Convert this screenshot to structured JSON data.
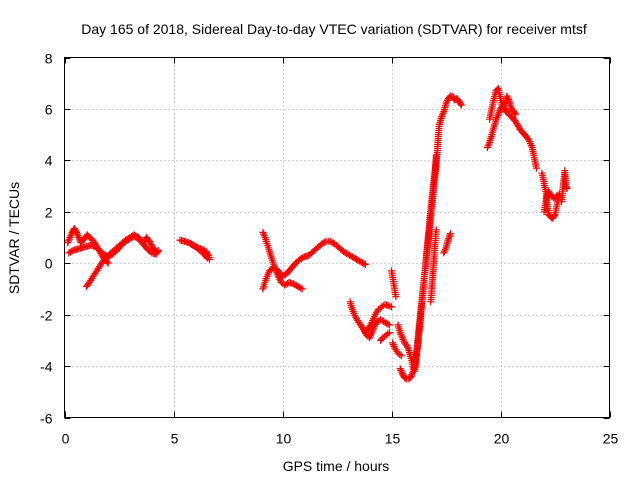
{
  "chart_data": {
    "type": "scatter",
    "title": "Day 165 of 2018, Sidereal Day-to-day VTEC variation (SDTVAR) for receiver mtsf",
    "xlabel": "GPS time / hours",
    "ylabel": "SDTVAR / TECUs",
    "xlim": [
      0,
      25
    ],
    "ylim": [
      -6,
      8
    ],
    "xticks": [
      0,
      5,
      10,
      15,
      20,
      25
    ],
    "yticks": [
      -6,
      -4,
      -2,
      0,
      2,
      4,
      6,
      8
    ],
    "grid": true,
    "marker": "+",
    "color": "#ff0000",
    "series": [
      {
        "name": "SDTVAR",
        "segments": [
          [
            [
              0.15,
              0.8
            ],
            [
              0.25,
              1.0
            ],
            [
              0.35,
              1.2
            ],
            [
              0.45,
              1.35
            ],
            [
              0.55,
              1.2
            ],
            [
              0.65,
              1.0
            ],
            [
              0.75,
              0.8
            ],
            [
              0.85,
              0.9
            ],
            [
              0.95,
              1.0
            ],
            [
              1.05,
              1.1
            ],
            [
              1.15,
              1.0
            ],
            [
              1.3,
              0.9
            ],
            [
              1.45,
              0.7
            ],
            [
              1.6,
              0.5
            ],
            [
              1.75,
              0.25
            ],
            [
              1.9,
              0.1
            ],
            [
              2.0,
              0.0
            ]
          ],
          [
            [
              0.2,
              0.4
            ],
            [
              0.4,
              0.5
            ],
            [
              0.6,
              0.55
            ],
            [
              0.8,
              0.6
            ],
            [
              1.0,
              0.65
            ],
            [
              1.2,
              0.7
            ],
            [
              1.4,
              0.65
            ],
            [
              1.6,
              0.5
            ],
            [
              1.8,
              0.35
            ],
            [
              2.0,
              0.25
            ],
            [
              2.2,
              0.35
            ],
            [
              2.4,
              0.5
            ],
            [
              2.6,
              0.7
            ],
            [
              2.8,
              0.85
            ],
            [
              3.0,
              0.95
            ],
            [
              3.2,
              1.05
            ],
            [
              3.4,
              0.95
            ],
            [
              3.6,
              0.75
            ],
            [
              3.8,
              0.55
            ],
            [
              4.0,
              0.4
            ],
            [
              4.2,
              0.35
            ],
            [
              4.3,
              0.5
            ]
          ],
          [
            [
              1.0,
              -0.9
            ],
            [
              1.1,
              -0.8
            ],
            [
              1.25,
              -0.6
            ],
            [
              1.4,
              -0.4
            ],
            [
              1.55,
              -0.2
            ],
            [
              1.7,
              0.0
            ],
            [
              1.85,
              0.15
            ],
            [
              2.0,
              0.3
            ],
            [
              2.2,
              0.45
            ],
            [
              2.4,
              0.6
            ],
            [
              2.6,
              0.75
            ],
            [
              2.8,
              0.9
            ],
            [
              3.0,
              1.0
            ],
            [
              3.2,
              1.1
            ],
            [
              3.4,
              1.0
            ],
            [
              3.6,
              0.8
            ],
            [
              3.75,
              1.0
            ],
            [
              3.9,
              0.85
            ],
            [
              4.05,
              0.6
            ],
            [
              4.2,
              0.45
            ]
          ],
          [
            [
              5.3,
              0.9
            ],
            [
              5.5,
              0.85
            ],
            [
              5.7,
              0.8
            ],
            [
              5.9,
              0.7
            ],
            [
              6.1,
              0.6
            ],
            [
              6.3,
              0.55
            ],
            [
              6.5,
              0.45
            ],
            [
              6.6,
              0.3
            ],
            [
              6.65,
              0.15
            ]
          ],
          [
            [
              5.8,
              0.75
            ],
            [
              6.0,
              0.65
            ],
            [
              6.2,
              0.5
            ],
            [
              6.4,
              0.35
            ],
            [
              6.55,
              0.2
            ]
          ],
          [
            [
              9.1,
              1.2
            ],
            [
              9.2,
              1.0
            ],
            [
              9.35,
              0.6
            ],
            [
              9.5,
              0.2
            ],
            [
              9.65,
              -0.2
            ],
            [
              9.8,
              -0.5
            ],
            [
              9.95,
              -0.75
            ],
            [
              10.1,
              -0.85
            ],
            [
              10.3,
              -0.75
            ],
            [
              10.5,
              -0.8
            ],
            [
              10.7,
              -0.9
            ],
            [
              10.9,
              -1.0
            ]
          ],
          [
            [
              9.1,
              -1.0
            ],
            [
              9.25,
              -0.6
            ],
            [
              9.4,
              -0.3
            ],
            [
              9.6,
              -0.15
            ],
            [
              9.8,
              -0.3
            ],
            [
              10.0,
              -0.5
            ],
            [
              10.2,
              -0.4
            ],
            [
              10.4,
              -0.2
            ],
            [
              10.6,
              0.0
            ],
            [
              10.8,
              0.15
            ],
            [
              11.0,
              0.25
            ],
            [
              11.2,
              0.3
            ],
            [
              11.4,
              0.45
            ],
            [
              11.6,
              0.6
            ],
            [
              11.8,
              0.75
            ],
            [
              12.0,
              0.85
            ],
            [
              12.2,
              0.85
            ],
            [
              12.4,
              0.75
            ],
            [
              12.6,
              0.6
            ],
            [
              12.8,
              0.45
            ],
            [
              13.0,
              0.35
            ],
            [
              13.2,
              0.25
            ],
            [
              13.4,
              0.15
            ],
            [
              13.6,
              0.05
            ],
            [
              13.8,
              -0.05
            ]
          ],
          [
            [
              13.1,
              -1.5
            ],
            [
              13.2,
              -1.8
            ],
            [
              13.35,
              -2.1
            ],
            [
              13.5,
              -2.3
            ],
            [
              13.65,
              -2.5
            ],
            [
              13.8,
              -2.7
            ],
            [
              13.95,
              -2.55
            ],
            [
              14.1,
              -2.3
            ],
            [
              14.25,
              -2.0
            ],
            [
              14.4,
              -1.8
            ],
            [
              14.55,
              -1.7
            ],
            [
              14.7,
              -1.6
            ],
            [
              14.85,
              -1.65
            ],
            [
              15.0,
              -1.7
            ]
          ],
          [
            [
              13.7,
              -2.5
            ],
            [
              13.85,
              -2.8
            ],
            [
              14.0,
              -2.9
            ],
            [
              14.15,
              -2.6
            ],
            [
              14.3,
              -2.3
            ],
            [
              14.5,
              -2.2
            ],
            [
              14.7,
              -2.3
            ],
            [
              14.9,
              -2.4
            ]
          ],
          [
            [
              14.5,
              -3.0
            ],
            [
              14.6,
              -2.9
            ],
            [
              14.75,
              -2.8
            ],
            [
              14.9,
              -2.7
            ]
          ],
          [
            [
              15.0,
              -0.3
            ],
            [
              15.1,
              -0.8
            ],
            [
              15.2,
              -1.3
            ]
          ],
          [
            [
              15.05,
              -3.1
            ],
            [
              15.15,
              -3.3
            ],
            [
              15.3,
              -3.5
            ],
            [
              15.45,
              -3.6
            ]
          ],
          [
            [
              15.3,
              -2.4
            ],
            [
              15.4,
              -2.7
            ],
            [
              15.5,
              -2.9
            ],
            [
              15.6,
              -3.1
            ],
            [
              15.7,
              -3.2
            ],
            [
              15.8,
              -3.4
            ],
            [
              15.9,
              -3.7
            ],
            [
              16.0,
              -4.0
            ],
            [
              16.05,
              -4.2
            ],
            [
              16.1,
              -4.0
            ],
            [
              16.15,
              -3.6
            ],
            [
              16.2,
              -3.0
            ],
            [
              16.3,
              -2.2
            ],
            [
              16.4,
              -1.4
            ],
            [
              16.5,
              -0.6
            ],
            [
              16.6,
              0.2
            ],
            [
              16.7,
              1.0
            ],
            [
              16.8,
              1.8
            ],
            [
              16.9,
              2.6
            ],
            [
              17.0,
              3.4
            ],
            [
              17.05,
              4.2
            ]
          ],
          [
            [
              15.4,
              -4.1
            ],
            [
              15.5,
              -4.3
            ],
            [
              15.6,
              -4.45
            ],
            [
              15.7,
              -4.5
            ],
            [
              15.8,
              -4.5
            ],
            [
              15.9,
              -4.4
            ],
            [
              16.0,
              -4.2
            ],
            [
              16.1,
              -3.8
            ],
            [
              16.2,
              -3.2
            ],
            [
              16.3,
              -2.4
            ],
            [
              16.4,
              -1.5
            ],
            [
              16.5,
              -0.6
            ],
            [
              16.6,
              0.3
            ],
            [
              16.7,
              1.2
            ],
            [
              16.8,
              2.1
            ],
            [
              16.9,
              2.9
            ],
            [
              17.0,
              3.6
            ],
            [
              17.1,
              4.3
            ],
            [
              17.15,
              5.0
            ],
            [
              17.2,
              5.4
            ],
            [
              17.3,
              5.7
            ],
            [
              17.4,
              5.9
            ],
            [
              17.5,
              6.2
            ],
            [
              17.6,
              6.4
            ],
            [
              17.7,
              6.5
            ],
            [
              17.8,
              6.5
            ],
            [
              17.9,
              6.35
            ],
            [
              18.0,
              6.4
            ],
            [
              18.1,
              6.3
            ],
            [
              18.2,
              6.15
            ]
          ],
          [
            [
              16.8,
              -1.5
            ],
            [
              16.85,
              -1.0
            ],
            [
              16.9,
              -0.4
            ],
            [
              16.95,
              0.2
            ],
            [
              17.0,
              0.8
            ],
            [
              17.05,
              1.3
            ]
          ],
          [
            [
              17.4,
              0.4
            ],
            [
              17.5,
              0.6
            ],
            [
              17.6,
              0.9
            ],
            [
              17.7,
              1.15
            ]
          ],
          [
            [
              19.4,
              4.5
            ],
            [
              19.5,
              4.7
            ],
            [
              19.6,
              5.0
            ],
            [
              19.7,
              5.3
            ],
            [
              19.8,
              5.6
            ],
            [
              19.9,
              5.8
            ],
            [
              20.0,
              6.0
            ],
            [
              20.1,
              6.1
            ],
            [
              20.2,
              6.0
            ],
            [
              20.3,
              5.85
            ],
            [
              20.5,
              5.7
            ],
            [
              20.7,
              5.5
            ],
            [
              20.9,
              5.2
            ],
            [
              21.1,
              5.0
            ],
            [
              21.3,
              4.8
            ],
            [
              21.45,
              4.5
            ],
            [
              21.55,
              4.1
            ],
            [
              21.65,
              3.7
            ]
          ],
          [
            [
              19.5,
              5.6
            ],
            [
              19.6,
              6.0
            ],
            [
              19.7,
              6.4
            ],
            [
              19.8,
              6.7
            ],
            [
              19.9,
              6.8
            ],
            [
              20.0,
              6.4
            ],
            [
              20.1,
              6.0
            ],
            [
              20.2,
              6.2
            ],
            [
              20.3,
              6.5
            ],
            [
              20.4,
              6.3
            ],
            [
              20.5,
              6.0
            ],
            [
              20.7,
              5.8
            ]
          ],
          [
            [
              21.9,
              3.5
            ],
            [
              22.0,
              3.1
            ],
            [
              22.1,
              2.7
            ],
            [
              22.15,
              2.2
            ],
            [
              22.2,
              1.9
            ],
            [
              22.3,
              1.8
            ],
            [
              22.4,
              1.75
            ],
            [
              22.5,
              1.9
            ],
            [
              22.6,
              2.3
            ],
            [
              22.7,
              2.7
            ]
          ],
          [
            [
              22.0,
              2.0
            ],
            [
              22.1,
              2.5
            ],
            [
              22.2,
              2.8
            ],
            [
              22.35,
              2.6
            ],
            [
              22.5,
              2.5
            ],
            [
              22.6,
              2.65
            ]
          ],
          [
            [
              22.8,
              2.4
            ],
            [
              22.85,
              2.8
            ],
            [
              22.9,
              3.2
            ],
            [
              22.95,
              3.6
            ],
            [
              23.0,
              3.0
            ],
            [
              23.05,
              2.9
            ]
          ]
        ]
      }
    ]
  }
}
